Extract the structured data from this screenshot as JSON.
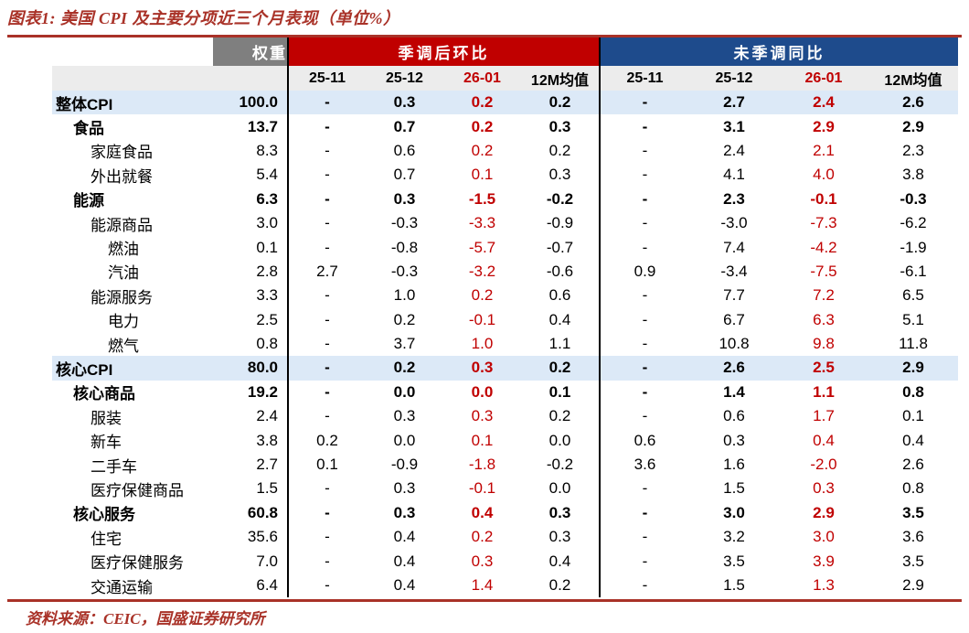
{
  "title": "图表1: 美国 CPI 及主要分项近三个月表现（单位%）",
  "footer": "资料来源：CEIC，国盛证券研究所",
  "colors": {
    "brand_red": "#A93228",
    "header_red": "#C00000",
    "header_blue": "#1E4B8C",
    "header_gray": "#7F7F7F",
    "subheader_bg": "#ECECEC",
    "highlight_row_bg": "#DCE9F7",
    "value_red": "#C00000"
  },
  "table": {
    "weight_header": "权重",
    "sections": [
      {
        "label": "季调后环比"
      },
      {
        "label": "未季调同比"
      }
    ],
    "sub_headers": [
      "25-11",
      "25-12",
      "26-01",
      "12M均值"
    ],
    "red_column_label": "26-01",
    "rows": [
      {
        "label": "整体CPI",
        "indent": 0,
        "bold": true,
        "highlight": true,
        "weight": "100.0",
        "mom": [
          "-",
          "0.3",
          "0.2",
          "0.2"
        ],
        "yoy": [
          "-",
          "2.7",
          "2.4",
          "2.6"
        ]
      },
      {
        "label": "食品",
        "indent": 1,
        "bold": true,
        "highlight": false,
        "weight": "13.7",
        "mom": [
          "-",
          "0.7",
          "0.2",
          "0.3"
        ],
        "yoy": [
          "-",
          "3.1",
          "2.9",
          "2.9"
        ]
      },
      {
        "label": "家庭食品",
        "indent": 2,
        "bold": false,
        "highlight": false,
        "weight": "8.3",
        "mom": [
          "-",
          "0.6",
          "0.2",
          "0.2"
        ],
        "yoy": [
          "-",
          "2.4",
          "2.1",
          "2.3"
        ]
      },
      {
        "label": "外出就餐",
        "indent": 2,
        "bold": false,
        "highlight": false,
        "weight": "5.4",
        "mom": [
          "-",
          "0.7",
          "0.1",
          "0.3"
        ],
        "yoy": [
          "-",
          "4.1",
          "4.0",
          "3.8"
        ]
      },
      {
        "label": "能源",
        "indent": 1,
        "bold": true,
        "highlight": false,
        "weight": "6.3",
        "mom": [
          "-",
          "0.3",
          "-1.5",
          "-0.2"
        ],
        "yoy": [
          "-",
          "2.3",
          "-0.1",
          "-0.3"
        ]
      },
      {
        "label": "能源商品",
        "indent": 2,
        "bold": false,
        "highlight": false,
        "weight": "3.0",
        "mom": [
          "-",
          "-0.3",
          "-3.3",
          "-0.9"
        ],
        "yoy": [
          "-",
          "-3.0",
          "-7.3",
          "-6.2"
        ]
      },
      {
        "label": "燃油",
        "indent": 3,
        "bold": false,
        "highlight": false,
        "weight": "0.1",
        "mom": [
          "-",
          "-0.8",
          "-5.7",
          "-0.7"
        ],
        "yoy": [
          "-",
          "7.4",
          "-4.2",
          "-1.9"
        ]
      },
      {
        "label": "汽油",
        "indent": 3,
        "bold": false,
        "highlight": false,
        "weight": "2.8",
        "mom": [
          "2.7",
          "-0.3",
          "-3.2",
          "-0.6"
        ],
        "yoy": [
          "0.9",
          "-3.4",
          "-7.5",
          "-6.1"
        ]
      },
      {
        "label": "能源服务",
        "indent": 2,
        "bold": false,
        "highlight": false,
        "weight": "3.3",
        "mom": [
          "-",
          "1.0",
          "0.2",
          "0.6"
        ],
        "yoy": [
          "-",
          "7.7",
          "7.2",
          "6.5"
        ]
      },
      {
        "label": "电力",
        "indent": 3,
        "bold": false,
        "highlight": false,
        "weight": "2.5",
        "mom": [
          "-",
          "0.2",
          "-0.1",
          "0.4"
        ],
        "yoy": [
          "-",
          "6.7",
          "6.3",
          "5.1"
        ]
      },
      {
        "label": "燃气",
        "indent": 3,
        "bold": false,
        "highlight": false,
        "weight": "0.8",
        "mom": [
          "-",
          "3.7",
          "1.0",
          "1.1"
        ],
        "yoy": [
          "-",
          "10.8",
          "9.8",
          "11.8"
        ]
      },
      {
        "label": "核心CPI",
        "indent": 0,
        "bold": true,
        "highlight": true,
        "weight": "80.0",
        "mom": [
          "-",
          "0.2",
          "0.3",
          "0.2"
        ],
        "yoy": [
          "-",
          "2.6",
          "2.5",
          "2.9"
        ]
      },
      {
        "label": "核心商品",
        "indent": 1,
        "bold": true,
        "highlight": false,
        "weight": "19.2",
        "mom": [
          "-",
          "0.0",
          "0.0",
          "0.1"
        ],
        "yoy": [
          "-",
          "1.4",
          "1.1",
          "0.8"
        ]
      },
      {
        "label": "服装",
        "indent": 2,
        "bold": false,
        "highlight": false,
        "weight": "2.4",
        "mom": [
          "-",
          "0.3",
          "0.3",
          "0.2"
        ],
        "yoy": [
          "-",
          "0.6",
          "1.7",
          "0.1"
        ]
      },
      {
        "label": "新车",
        "indent": 2,
        "bold": false,
        "highlight": false,
        "weight": "3.8",
        "mom": [
          "0.2",
          "0.0",
          "0.1",
          "0.0"
        ],
        "yoy": [
          "0.6",
          "0.3",
          "0.4",
          "0.4"
        ]
      },
      {
        "label": "二手车",
        "indent": 2,
        "bold": false,
        "highlight": false,
        "weight": "2.7",
        "mom": [
          "0.1",
          "-0.9",
          "-1.8",
          "-0.2"
        ],
        "yoy": [
          "3.6",
          "1.6",
          "-2.0",
          "2.6"
        ]
      },
      {
        "label": "医疗保健商品",
        "indent": 2,
        "bold": false,
        "highlight": false,
        "weight": "1.5",
        "mom": [
          "-",
          "0.3",
          "-0.1",
          "0.0"
        ],
        "yoy": [
          "-",
          "1.5",
          "0.3",
          "0.8"
        ]
      },
      {
        "label": "核心服务",
        "indent": 1,
        "bold": true,
        "highlight": false,
        "weight": "60.8",
        "mom": [
          "-",
          "0.3",
          "0.4",
          "0.3"
        ],
        "yoy": [
          "-",
          "3.0",
          "2.9",
          "3.5"
        ]
      },
      {
        "label": "住宅",
        "indent": 2,
        "bold": false,
        "highlight": false,
        "weight": "35.6",
        "mom": [
          "-",
          "0.4",
          "0.2",
          "0.3"
        ],
        "yoy": [
          "-",
          "3.2",
          "3.0",
          "3.6"
        ]
      },
      {
        "label": "医疗保健服务",
        "indent": 2,
        "bold": false,
        "highlight": false,
        "weight": "7.0",
        "mom": [
          "-",
          "0.4",
          "0.3",
          "0.4"
        ],
        "yoy": [
          "-",
          "3.5",
          "3.9",
          "3.5"
        ]
      },
      {
        "label": "交通运输",
        "indent": 2,
        "bold": false,
        "highlight": false,
        "weight": "6.4",
        "mom": [
          "-",
          "0.4",
          "1.4",
          "0.2"
        ],
        "yoy": [
          "-",
          "1.5",
          "1.3",
          "2.9"
        ]
      }
    ]
  }
}
